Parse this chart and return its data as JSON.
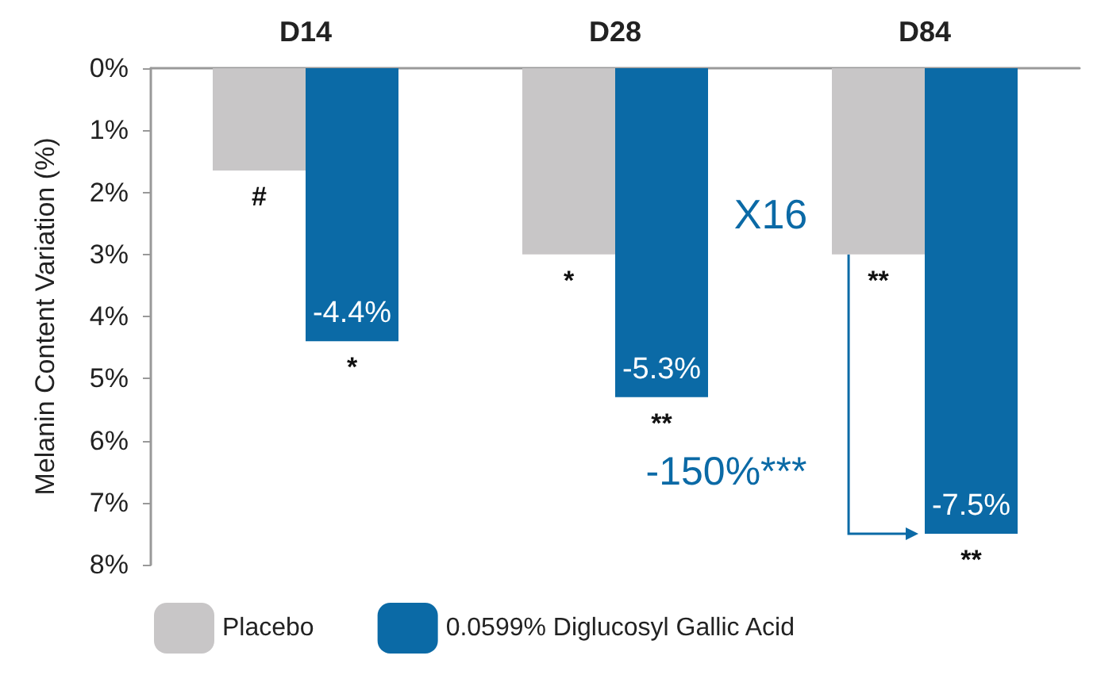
{
  "chart_data": {
    "type": "bar",
    "ylabel": "Melanin Content Variation (%)",
    "categories": [
      "D14",
      "D28",
      "D84"
    ],
    "series": [
      {
        "name": "Placebo",
        "color": "#c8c6c7",
        "values": [
          -1.65,
          -3.0,
          -3.0
        ]
      },
      {
        "name": "0.0599% Diglucosyl Gallic Acid",
        "color": "#0b6aa6",
        "values": [
          -4.4,
          -5.3,
          -7.5
        ],
        "value_labels": [
          "-4.4%",
          "-5.3%",
          "-7.5%"
        ]
      }
    ],
    "ylim": [
      -8,
      0
    ],
    "yticks": [
      {
        "value": 0,
        "label": "0%"
      },
      {
        "value": -1,
        "label": "1%"
      },
      {
        "value": -2,
        "label": "2%"
      },
      {
        "value": -3,
        "label": "3%"
      },
      {
        "value": -4,
        "label": "4%"
      },
      {
        "value": -5,
        "label": "5%"
      },
      {
        "value": -6,
        "label": "6%"
      },
      {
        "value": -7,
        "label": "7%"
      },
      {
        "value": -8,
        "label": "8%"
      }
    ],
    "annotations": [
      {
        "text": "#",
        "x": "D14",
        "y": -1.65
      },
      {
        "text": "*",
        "x": "D14",
        "y": -4.4
      },
      {
        "text": "*",
        "x": "D28",
        "y": -3.0
      },
      {
        "text": "**",
        "x": "D28",
        "y": -5.3
      },
      {
        "text": "**",
        "x": "D84",
        "y": -3.0
      },
      {
        "text": "**",
        "x": "D84",
        "y": -7.5
      },
      "X16",
      "-150%***"
    ],
    "grid": false,
    "legend": "bottom"
  }
}
